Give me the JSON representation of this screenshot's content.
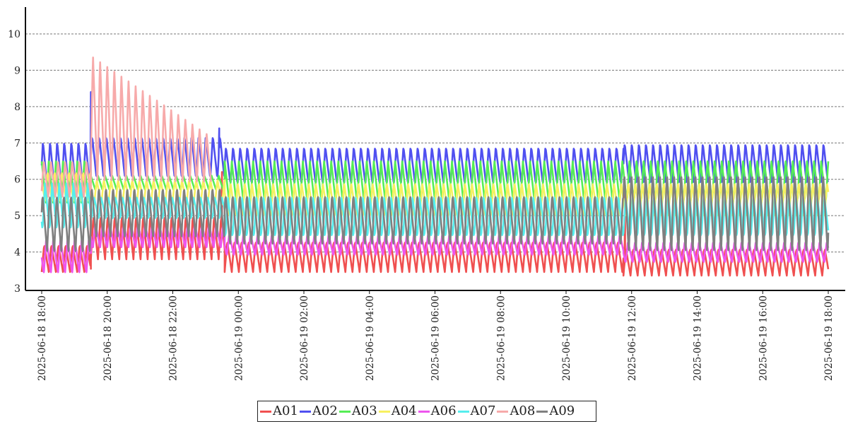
{
  "chart_data": {
    "type": "line",
    "title": "",
    "xlabel": "",
    "ylabel": "",
    "ylim": [
      3,
      10.75
    ],
    "yticks": [
      3,
      4,
      5,
      6,
      7,
      8,
      9,
      10
    ],
    "x_range": [
      "2025-06-18 18:00",
      "2025-06-19 18:00"
    ],
    "xtick_labels": [
      "2025-06-18 18:00",
      "2025-06-18 20:00",
      "2025-06-18 22:00",
      "2025-06-19 00:00",
      "2025-06-19 02:00",
      "2025-06-19 04:00",
      "2025-06-19 06:00",
      "2025-06-19 08:00",
      "2025-06-19 10:00",
      "2025-06-19 12:00",
      "2025-06-19 14:00",
      "2025-06-19 16:00",
      "2025-06-19 18:00"
    ],
    "grid": "horizontal dashed",
    "legend_position": "bottom-center",
    "cycle_minutes": 13,
    "series": [
      {
        "name": "A01",
        "color": "#f05050",
        "segments": [
          {
            "from": "2025-06-18 18:00",
            "to": "2025-06-18 19:30",
            "min": 3.45,
            "max": 4.2
          },
          {
            "from": "2025-06-18 19:30",
            "to": "2025-06-18 23:35",
            "min": 3.8,
            "max": 5.0
          },
          {
            "from": "2025-06-18 23:35",
            "to": "2025-06-19 11:45",
            "min": 3.45,
            "max": 4.3
          },
          {
            "from": "2025-06-19 11:45",
            "to": "2025-06-19 18:00",
            "min": 3.35,
            "max": 4.1
          }
        ],
        "spikes": [
          [
            "2025-06-18 19:30",
            6.1
          ],
          [
            "2025-06-18 23:30",
            6.2
          ],
          [
            "2025-06-19 11:48",
            5.6
          ]
        ]
      },
      {
        "name": "A02",
        "color": "#5050f0",
        "segments": [
          {
            "from": "2025-06-18 18:00",
            "to": "2025-06-18 19:30",
            "min": 5.7,
            "max": 7.05
          },
          {
            "from": "2025-06-18 19:30",
            "to": "2025-06-18 23:35",
            "min": 6.0,
            "max": 7.2
          },
          {
            "from": "2025-06-18 23:35",
            "to": "2025-06-19 11:45",
            "min": 5.85,
            "max": 6.9
          },
          {
            "from": "2025-06-19 11:45",
            "to": "2025-06-19 18:00",
            "min": 5.85,
            "max": 7.0
          }
        ],
        "spikes": [
          [
            "2025-06-18 19:30",
            8.4
          ],
          [
            "2025-06-18 23:25",
            7.4
          ]
        ]
      },
      {
        "name": "A03",
        "color": "#55ee55",
        "segments": [
          {
            "from": "2025-06-18 18:00",
            "to": "2025-06-18 19:30",
            "min": 5.3,
            "max": 6.5
          },
          {
            "from": "2025-06-18 19:30",
            "to": "2025-06-18 23:35",
            "min": 5.7,
            "max": 6.1
          },
          {
            "from": "2025-06-18 23:35",
            "to": "2025-06-19 18:00",
            "min": 5.35,
            "max": 6.5
          }
        ],
        "spikes": []
      },
      {
        "name": "A04",
        "color": "#f8f060",
        "segments": [
          {
            "from": "2025-06-18 18:00",
            "to": "2025-06-18 19:30",
            "min": 5.4,
            "max": 6.2
          },
          {
            "from": "2025-06-18 19:30",
            "to": "2025-06-18 23:35",
            "min": 5.3,
            "max": 6.0
          },
          {
            "from": "2025-06-18 23:35",
            "to": "2025-06-19 18:00",
            "min": 5.0,
            "max": 5.9
          }
        ],
        "spikes": []
      },
      {
        "name": "A06",
        "color": "#ee55ee",
        "segments": [
          {
            "from": "2025-06-18 18:00",
            "to": "2025-06-18 19:30",
            "min": 3.4,
            "max": 4.4
          },
          {
            "from": "2025-06-18 19:30",
            "to": "2025-06-18 23:35",
            "min": 4.1,
            "max": 4.8
          },
          {
            "from": "2025-06-18 23:35",
            "to": "2025-06-19 11:45",
            "min": 3.9,
            "max": 4.5
          },
          {
            "from": "2025-06-19 11:45",
            "to": "2025-06-19 18:00",
            "min": 3.7,
            "max": 4.3
          }
        ],
        "spikes": []
      },
      {
        "name": "A07",
        "color": "#55eeee",
        "segments": [
          {
            "from": "2025-06-18 18:00",
            "to": "2025-06-18 19:30",
            "min": 4.6,
            "max": 5.9
          },
          {
            "from": "2025-06-18 19:30",
            "to": "2025-06-18 23:35",
            "min": 4.9,
            "max": 5.5
          },
          {
            "from": "2025-06-18 23:35",
            "to": "2025-06-19 18:00",
            "min": 4.4,
            "max": 5.5
          }
        ],
        "spikes": []
      },
      {
        "name": "A08",
        "color": "#f7aaaa",
        "segments": [
          {
            "from": "2025-06-18 18:00",
            "to": "2025-06-18 19:30",
            "min": 5.5,
            "max": 6.5
          },
          {
            "from": "2025-06-18 19:30",
            "to": "2025-06-18 23:10",
            "min": 5.9,
            "max": 9.5,
            "decay": true,
            "decay_end_max": 7.2
          }
        ],
        "spikes": []
      },
      {
        "name": "A09",
        "color": "#808080",
        "segments": [
          {
            "from": "2025-06-18 18:00",
            "to": "2025-06-18 19:30",
            "min": 4.0,
            "max": 5.6
          },
          {
            "from": "2025-06-18 19:30",
            "to": "2025-06-18 23:35",
            "min": 4.4,
            "max": 5.8
          },
          {
            "from": "2025-06-18 23:35",
            "to": "2025-06-19 11:45",
            "min": 4.2,
            "max": 5.6
          },
          {
            "from": "2025-06-19 11:45",
            "to": "2025-06-19 18:00",
            "min": 4.0,
            "max": 6.2
          }
        ],
        "spikes": []
      }
    ]
  }
}
